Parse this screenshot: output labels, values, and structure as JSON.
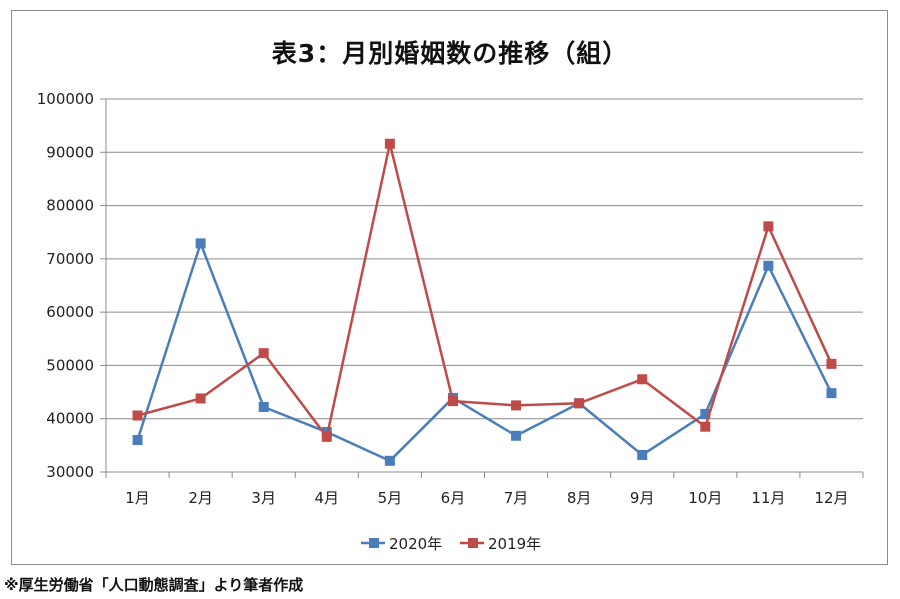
{
  "chart_data": {
    "type": "line",
    "title": "表3：月別婚姻数の推移（組）",
    "categories": [
      "1月",
      "2月",
      "3月",
      "4月",
      "5月",
      "6月",
      "7月",
      "8月",
      "9月",
      "10月",
      "11月",
      "12月"
    ],
    "ylim": [
      30000,
      100000
    ],
    "yticks": [
      30000,
      40000,
      50000,
      60000,
      70000,
      80000,
      90000,
      100000
    ],
    "grid": true,
    "legend_position": "bottom",
    "series": [
      {
        "name": "2020年",
        "color": "#4a7ebb",
        "values": [
          36000,
          72900,
          42200,
          37500,
          32100,
          43900,
          36800,
          42900,
          33200,
          40900,
          68700,
          44800
        ]
      },
      {
        "name": "2019年",
        "color": "#be4b48",
        "values": [
          40600,
          43800,
          52300,
          36600,
          91600,
          43300,
          42500,
          42900,
          47400,
          38500,
          76100,
          50300
        ]
      }
    ]
  },
  "source_note": "※厚生労働省「人口動態調査」より筆者作成"
}
